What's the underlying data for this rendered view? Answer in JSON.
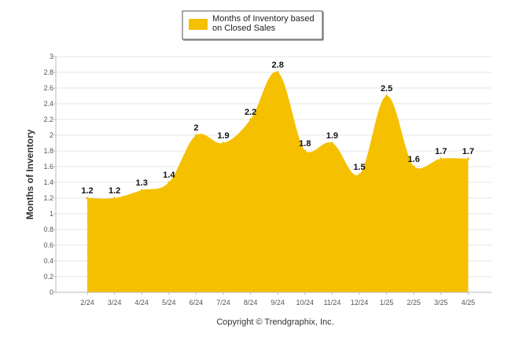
{
  "chart_data": {
    "type": "area",
    "categories": [
      "2/24",
      "3/24",
      "4/24",
      "5/24",
      "6/24",
      "7/24",
      "8/24",
      "9/24",
      "10/24",
      "11/24",
      "12/24",
      "1/25",
      "2/25",
      "3/25",
      "4/25"
    ],
    "series": [
      {
        "name": "Months of Inventory based on Closed Sales",
        "values": [
          1.2,
          1.2,
          1.3,
          1.4,
          2,
          1.9,
          2.2,
          2.8,
          1.8,
          1.9,
          1.5,
          2.5,
          1.6,
          1.7,
          1.7
        ],
        "labels": [
          "1.2",
          "1.2",
          "1.3",
          "1.4",
          "2",
          "1.9",
          "2.2",
          "2.8",
          "1.8",
          "1.9",
          "1.5",
          "2.5",
          "1.6",
          "1.7",
          "1.7"
        ],
        "color": "#F5C000"
      }
    ],
    "ylabel": "Months of Inventory",
    "xlabel": "",
    "ylim": [
      0,
      3
    ],
    "yticks": [
      "0",
      "0.2",
      "0.4",
      "0.6",
      "0.8",
      "1",
      "1.2",
      "1.4",
      "1.6",
      "1.8",
      "2",
      "2.2",
      "2.4",
      "2.6",
      "2.8",
      "3"
    ],
    "grid": true,
    "legend_position": "top-center",
    "footer": "Copyright © Trendgraphix, Inc."
  }
}
